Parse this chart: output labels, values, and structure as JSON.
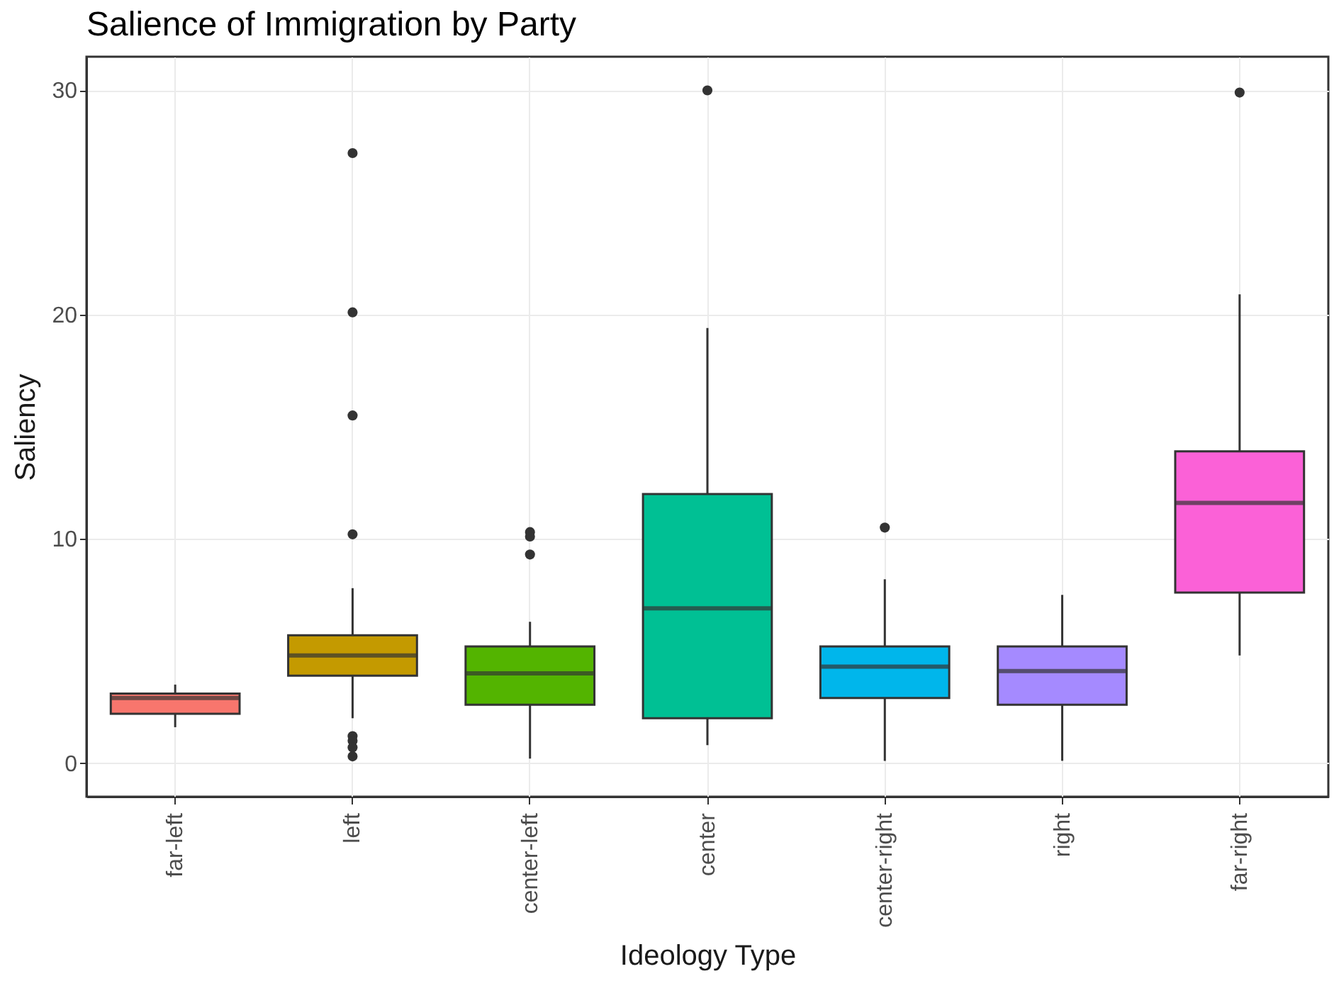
{
  "chart_data": {
    "type": "box",
    "title": "Salience of Immigration by Party",
    "xlabel": "Ideology Type",
    "ylabel": "Saliency",
    "categories": [
      "far-left",
      "left",
      "center-left",
      "center",
      "center-right",
      "right",
      "far-right"
    ],
    "colors": [
      "#f8766d",
      "#c49a00",
      "#53b400",
      "#00c094",
      "#00b6eb",
      "#a58aff",
      "#fb61d7"
    ],
    "boxes": [
      {
        "low": 1.6,
        "q1": 2.2,
        "median": 2.9,
        "q3": 3.1,
        "high": 3.5
      },
      {
        "low": 2.0,
        "q1": 3.9,
        "median": 4.8,
        "q3": 5.7,
        "high": 7.8,
        "outliers": [
          27.2,
          20.1,
          15.5,
          10.2,
          1.2,
          1.0,
          0.7,
          0.3
        ]
      },
      {
        "low": 0.2,
        "q1": 2.6,
        "median": 4.0,
        "q3": 5.2,
        "high": 6.3,
        "outliers": [
          10.3,
          10.1,
          9.3
        ]
      },
      {
        "low": 0.8,
        "q1": 2.0,
        "median": 6.9,
        "q3": 12.0,
        "high": 19.4,
        "outliers": [
          30.0
        ]
      },
      {
        "low": 0.1,
        "q1": 2.9,
        "median": 4.3,
        "q3": 5.2,
        "high": 8.2,
        "outliers": [
          10.5
        ]
      },
      {
        "low": 0.1,
        "q1": 2.6,
        "median": 4.1,
        "q3": 5.2,
        "high": 7.5
      },
      {
        "low": 4.8,
        "q1": 7.6,
        "median": 11.6,
        "q3": 13.9,
        "high": 20.9,
        "outliers": [
          29.9
        ]
      }
    ],
    "ylim": [
      -1.5,
      31.5
    ],
    "yticks": [
      0,
      10,
      20,
      30
    ],
    "grid": true
  }
}
